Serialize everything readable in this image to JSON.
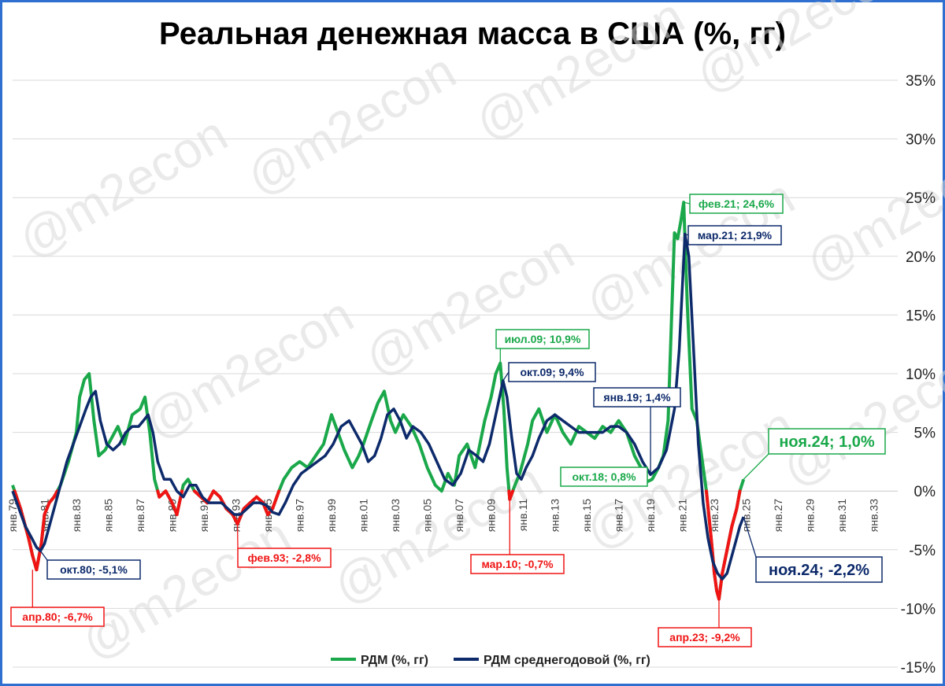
{
  "chart_data": {
    "type": "line",
    "title": "Реальная денежная масса в США (%, гг)",
    "watermark": "@m2econ",
    "y_axis": {
      "min": -15,
      "max": 35,
      "step": 5,
      "tick_labels": [
        "-15%",
        "-10%",
        "-5%",
        "0%",
        "5%",
        "10%",
        "15%",
        "20%",
        "25%",
        "30%",
        "35%"
      ],
      "side": "right",
      "grid": true
    },
    "x_axis": {
      "min": 1979.0,
      "max": 2034.5,
      "ticks": [
        1979,
        1981,
        1983,
        1985,
        1987,
        1989,
        1991,
        1993,
        1995,
        1997,
        1999,
        2001,
        2003,
        2005,
        2007,
        2009,
        2011,
        2013,
        2015,
        2017,
        2019,
        2021,
        2023,
        2025,
        2027,
        2029,
        2031,
        2033
      ],
      "tick_labels": [
        "янв.79",
        "янв.81",
        "янв.83",
        "янв.85",
        "янв.87",
        "янв.89",
        "янв.91",
        "янв.93",
        "янв.95",
        "янв.97",
        "янв.99",
        "янв.01",
        "янв.03",
        "янв.05",
        "янв.07",
        "янв.09",
        "янв.11",
        "янв.13",
        "янв.15",
        "янв.17",
        "янв.19",
        "янв.21",
        "янв.23",
        "янв.25",
        "янв.27",
        "янв.29",
        "янв.31",
        "янв.33"
      ]
    },
    "legend": {
      "placement": "bottom",
      "items": [
        "РДМ (%, гг)",
        "РДМ среднегодовой (%, гг)"
      ]
    },
    "colors": {
      "rdm": "#1aa84a",
      "rdm_negative": "#f01414",
      "avg": "#0d2a6b",
      "axis": "#2e6fd0"
    },
    "series": [
      {
        "name": "РДМ (%, гг)",
        "negative_color": "#f01414",
        "x": [
          1979.0,
          1979.5,
          1980.0,
          1980.25,
          1980.5,
          1980.8,
          1981.0,
          1981.3,
          1981.6,
          1982.0,
          1982.5,
          1983.0,
          1983.2,
          1983.5,
          1983.8,
          1984.1,
          1984.4,
          1984.8,
          1985.2,
          1985.6,
          1986.0,
          1986.5,
          1987.0,
          1987.3,
          1987.6,
          1987.9,
          1988.2,
          1988.6,
          1989.0,
          1989.3,
          1989.7,
          1990.0,
          1990.4,
          1990.8,
          1991.2,
          1991.6,
          1992.0,
          1992.4,
          1992.8,
          1993.1,
          1993.5,
          1993.9,
          1994.3,
          1994.7,
          1995.0,
          1995.3,
          1995.7,
          1996.0,
          1996.5,
          1997.0,
          1997.5,
          1998.0,
          1998.5,
          1999.0,
          1999.4,
          1999.8,
          2000.3,
          2000.7,
          2001.0,
          2001.5,
          2001.9,
          2002.3,
          2002.7,
          2003.0,
          2003.5,
          2004.0,
          2004.5,
          2005.0,
          2005.5,
          2005.9,
          2006.3,
          2006.7,
          2007.0,
          2007.5,
          2008.0,
          2008.3,
          2008.6,
          2009.0,
          2009.3,
          2009.58,
          2009.8,
          2010.0,
          2010.17,
          2010.5,
          2010.8,
          2011.0,
          2011.3,
          2011.6,
          2012.0,
          2012.5,
          2013.0,
          2013.5,
          2014.0,
          2014.5,
          2015.0,
          2015.5,
          2016.0,
          2016.5,
          2017.0,
          2017.5,
          2018.0,
          2018.4,
          2018.79,
          2019.1,
          2019.5,
          2019.8,
          2020.1,
          2020.3,
          2020.5,
          2020.7,
          2020.9,
          2021.08,
          2021.3,
          2021.6,
          2021.9,
          2022.2,
          2022.5,
          2022.8,
          2023.0,
          2023.15,
          2023.29,
          2023.5,
          2023.8,
          2024.1,
          2024.4,
          2024.6,
          2024.83
        ],
        "y": [
          0.5,
          -1.5,
          -4.0,
          -5.5,
          -6.7,
          -4.5,
          -2.0,
          -1.0,
          -0.5,
          0.5,
          2.5,
          5.0,
          8.0,
          9.5,
          10.0,
          6.0,
          3.0,
          3.5,
          4.5,
          5.5,
          4.0,
          6.5,
          7.0,
          8.0,
          5.0,
          1.0,
          -0.5,
          0.0,
          -1.0,
          -2.0,
          0.5,
          1.0,
          0.0,
          -0.5,
          -1.0,
          0.0,
          -0.5,
          -1.5,
          -2.0,
          -2.8,
          -1.5,
          -1.0,
          -0.5,
          -1.0,
          -2.0,
          -1.5,
          0.0,
          1.0,
          2.0,
          2.5,
          2.0,
          3.0,
          4.0,
          6.5,
          5.0,
          3.5,
          2.0,
          3.0,
          4.0,
          6.0,
          7.5,
          8.5,
          6.0,
          5.0,
          6.5,
          5.5,
          4.0,
          2.0,
          0.5,
          0.0,
          1.5,
          0.5,
          3.0,
          4.0,
          2.0,
          4.0,
          6.0,
          8.0,
          10.0,
          10.9,
          7.0,
          2.0,
          -0.7,
          0.5,
          1.5,
          2.5,
          4.0,
          6.0,
          7.0,
          5.0,
          6.5,
          5.0,
          4.0,
          5.5,
          5.0,
          4.5,
          5.5,
          5.0,
          6.0,
          5.0,
          3.0,
          2.0,
          0.8,
          1.0,
          2.0,
          3.0,
          6.0,
          14.0,
          22.0,
          21.5,
          23.0,
          24.6,
          16.0,
          7.0,
          6.0,
          3.0,
          0.0,
          -4.0,
          -7.0,
          -8.5,
          -9.2,
          -7.0,
          -5.0,
          -3.0,
          -1.5,
          0.0,
          1.0
        ]
      },
      {
        "name": "РДМ среднегодовой (%, гг)",
        "x": [
          1979.0,
          1979.4,
          1979.8,
          1980.2,
          1980.5,
          1980.75,
          1981.0,
          1981.3,
          1981.6,
          1982.0,
          1982.4,
          1982.8,
          1983.2,
          1983.6,
          1983.9,
          1984.2,
          1984.5,
          1984.9,
          1985.3,
          1985.7,
          1986.1,
          1986.5,
          1986.9,
          1987.2,
          1987.5,
          1987.8,
          1988.1,
          1988.5,
          1988.9,
          1989.3,
          1989.7,
          1990.1,
          1990.5,
          1990.9,
          1991.3,
          1991.7,
          1992.1,
          1992.5,
          1992.9,
          1993.3,
          1993.7,
          1994.1,
          1994.5,
          1994.9,
          1995.3,
          1995.7,
          1996.1,
          1996.6,
          1997.1,
          1997.6,
          1998.1,
          1998.6,
          1999.1,
          1999.6,
          2000.1,
          2000.5,
          2000.9,
          2001.3,
          2001.7,
          2002.1,
          2002.5,
          2002.9,
          2003.3,
          2003.7,
          2004.1,
          2004.6,
          2005.1,
          2005.6,
          2006.1,
          2006.6,
          2007.1,
          2007.6,
          2008.1,
          2008.5,
          2008.9,
          2009.3,
          2009.75,
          2010.0,
          2010.3,
          2010.6,
          2010.9,
          2011.2,
          2011.6,
          2012.0,
          2012.5,
          2013.0,
          2013.5,
          2014.0,
          2014.5,
          2015.0,
          2015.5,
          2016.0,
          2016.5,
          2017.0,
          2017.5,
          2018.0,
          2018.5,
          2019.0,
          2019.5,
          2020.0,
          2020.5,
          2020.8,
          2021.16,
          2021.4,
          2021.7,
          2022.0,
          2022.3,
          2022.6,
          2022.9,
          2023.2,
          2023.5,
          2023.8,
          2024.1,
          2024.4,
          2024.6,
          2024.83
        ],
        "y": [
          0.0,
          -1.5,
          -3.0,
          -4.0,
          -4.8,
          -5.1,
          -4.5,
          -3.0,
          -1.5,
          0.5,
          2.5,
          4.0,
          5.5,
          7.0,
          8.0,
          8.5,
          6.0,
          4.0,
          3.5,
          4.0,
          5.0,
          5.5,
          5.5,
          6.0,
          6.5,
          5.0,
          2.5,
          1.0,
          1.0,
          0.0,
          -0.5,
          0.5,
          0.5,
          -0.5,
          -1.0,
          -1.0,
          -1.0,
          -1.5,
          -2.0,
          -2.0,
          -1.5,
          -1.0,
          -1.0,
          -1.2,
          -1.8,
          -2.0,
          -1.0,
          0.5,
          1.5,
          2.0,
          2.5,
          3.0,
          4.0,
          5.5,
          6.0,
          5.0,
          4.0,
          2.5,
          3.0,
          4.5,
          6.5,
          7.0,
          6.0,
          4.5,
          5.5,
          5.0,
          4.0,
          2.5,
          1.0,
          0.5,
          1.5,
          3.5,
          3.0,
          2.5,
          4.0,
          6.5,
          9.4,
          8.0,
          4.5,
          1.5,
          1.0,
          2.0,
          3.0,
          4.5,
          6.0,
          6.5,
          6.0,
          5.5,
          5.0,
          5.0,
          5.0,
          5.0,
          5.5,
          5.5,
          5.0,
          4.0,
          2.5,
          1.4,
          2.0,
          3.5,
          7.0,
          12.0,
          21.9,
          20.0,
          12.0,
          4.0,
          -1.0,
          -4.0,
          -6.0,
          -7.0,
          -7.5,
          -7.0,
          -5.5,
          -4.0,
          -3.0,
          -2.2
        ]
      }
    ],
    "annotations": [
      {
        "label": "апр.80; -6,7%",
        "x": 1980.25,
        "y": -6.7,
        "color": "#f01414"
      },
      {
        "label": "окт.80; -5,1%",
        "x": 1980.75,
        "y": -5.1,
        "color": "#0d2a6b"
      },
      {
        "label": "фев.93; -2,8%",
        "x": 1993.1,
        "y": -2.8,
        "color": "#f01414"
      },
      {
        "label": "июл.09; 10,9%",
        "x": 2009.58,
        "y": 10.9,
        "color": "#1aa84a"
      },
      {
        "label": "окт.09; 9,4%",
        "x": 2009.75,
        "y": 9.4,
        "color": "#0d2a6b"
      },
      {
        "label": "мар.10; -0,7%",
        "x": 2010.17,
        "y": -0.7,
        "color": "#f01414"
      },
      {
        "label": "янв.19; 1,4%",
        "x": 2019.0,
        "y": 1.4,
        "color": "#0d2a6b"
      },
      {
        "label": "окт.18; 0,8%",
        "x": 2018.79,
        "y": 0.8,
        "color": "#1aa84a"
      },
      {
        "label": "фев.21; 24,6%",
        "x": 2021.08,
        "y": 24.6,
        "color": "#1aa84a"
      },
      {
        "label": "мар.21; 21,9%",
        "x": 2021.16,
        "y": 21.9,
        "color": "#0d2a6b"
      },
      {
        "label": "апр.23; -9,2%",
        "x": 2023.29,
        "y": -9.2,
        "color": "#f01414"
      },
      {
        "label": "ноя.24; 1,0%",
        "x": 2024.83,
        "y": 1.0,
        "color": "#1aa84a",
        "big": true
      },
      {
        "label": "ноя.24; -2,2%",
        "x": 2024.83,
        "y": -2.2,
        "color": "#0d2a6b",
        "big": true
      }
    ]
  }
}
